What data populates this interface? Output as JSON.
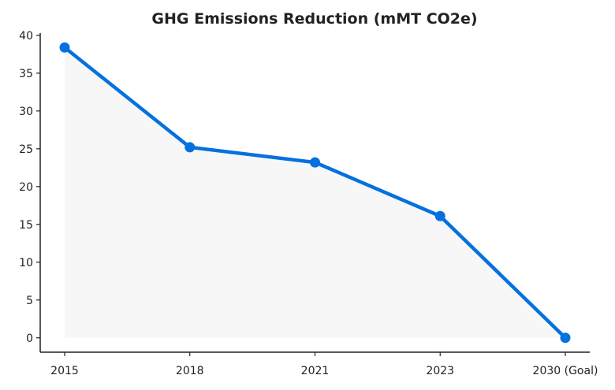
{
  "chart_data": {
    "type": "line",
    "title": "GHG Emissions Reduction (mMT CO2e)",
    "xlabel": "",
    "ylabel": "",
    "categories": [
      "2015",
      "2018",
      "2021",
      "2023",
      "2030 (Goal)"
    ],
    "series": [
      {
        "values": [
          38.4,
          25.2,
          23.2,
          16.1,
          0.0
        ]
      }
    ],
    "ylim": [
      -1.9,
      40.3
    ],
    "yticks": [
      0,
      5,
      10,
      15,
      20,
      25,
      30,
      35,
      40
    ],
    "grid": false,
    "area_fill": true,
    "colors": {
      "line": "#0571de",
      "area": "#f7f7f7",
      "axis": "#222222"
    }
  }
}
